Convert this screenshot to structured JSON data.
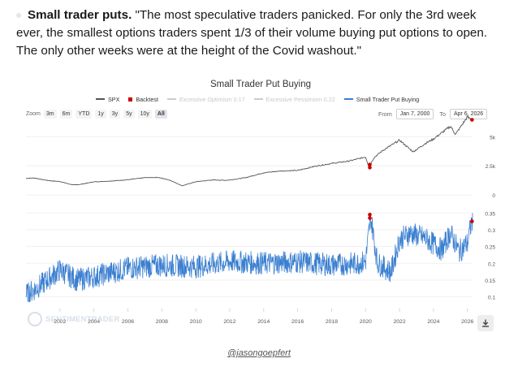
{
  "post": {
    "lead": "Small trader puts.",
    "body": " \"The most speculative traders panicked. For only the 3rd week ever, the smallest options traders spent 1/3 of their volume buying put options to open. The only other weeks were at the height of the Covid washout.\""
  },
  "chart": {
    "title": "Small Trader Put Buying",
    "zoom_label": "Zoom",
    "zoom_buttons": [
      "3m",
      "6m",
      "YTD",
      "1y",
      "3y",
      "5y",
      "10y",
      "All"
    ],
    "from_label": "From",
    "from_date": "Jan 7, 2000",
    "to_label": "To",
    "to_date": "Apr 6, 2026",
    "watermark": "SENTIMENTRADER",
    "legend": [
      {
        "label": "SPX",
        "color": "#555555",
        "faded": false,
        "kind": "line"
      },
      {
        "label": "Backtest",
        "color": "#cc0000",
        "faded": false,
        "kind": "square"
      },
      {
        "label": "Excessive Optimism 0.17",
        "color": "#cccccc",
        "faded": true,
        "kind": "line"
      },
      {
        "label": "Excessive Pessimism 0.22",
        "color": "#cccccc",
        "faded": true,
        "kind": "line"
      },
      {
        "label": "Small Trader Put Buying",
        "color": "#3a7fd0",
        "faded": false,
        "kind": "line"
      }
    ]
  },
  "chart_data": {
    "type": "line",
    "title": "Small Trader Put Buying",
    "x_range": [
      2000.0,
      2026.3
    ],
    "x_ticks": [
      "2002",
      "2004",
      "2006",
      "2008",
      "2010",
      "2012",
      "2014",
      "2016",
      "2018",
      "2020",
      "2022",
      "2024",
      "2026"
    ],
    "spx_ticks": [
      "5k",
      "2.5k",
      "0"
    ],
    "spx_range": [
      0,
      6000
    ],
    "indicator_ticks": [
      "0.35",
      "0.3",
      "0.25",
      "0.2",
      "0.15",
      "0.1"
    ],
    "indicator_range": [
      0.07,
      0.37
    ],
    "series": [
      {
        "name": "SPX",
        "color": "#555555",
        "x": [
          2000.0,
          2000.5,
          2001.0,
          2001.5,
          2002.0,
          2002.5,
          2002.8,
          2003.2,
          2004.0,
          2005.0,
          2006.0,
          2007.0,
          2007.8,
          2008.5,
          2009.2,
          2010.0,
          2011.0,
          2011.8,
          2012.5,
          2013.0,
          2014.0,
          2015.0,
          2016.0,
          2017.0,
          2018.0,
          2019.0,
          2020.0,
          2020.2,
          2020.5,
          2021.0,
          2022.0,
          2022.8,
          2023.5,
          2024.0,
          2025.0,
          2025.3,
          2026.0,
          2026.27
        ],
        "values": [
          1420,
          1450,
          1300,
          1200,
          1150,
          950,
          850,
          900,
          1120,
          1190,
          1300,
          1480,
          1500,
          1250,
          780,
          1130,
          1280,
          1250,
          1380,
          1500,
          1900,
          2050,
          2100,
          2450,
          2700,
          2900,
          3250,
          2400,
          3200,
          3800,
          4700,
          3700,
          4400,
          4800,
          5900,
          5200,
          6700,
          6450
        ]
      },
      {
        "name": "Small Trader Put Buying",
        "color": "#3a7fd0",
        "anchors_x": [
          2000.0,
          2001.0,
          2002.0,
          2003.0,
          2004.0,
          2006.0,
          2008.0,
          2010.0,
          2012.0,
          2014.0,
          2016.0,
          2018.0,
          2019.5,
          2020.0,
          2020.3,
          2020.7,
          2021.5,
          2022.0,
          2022.6,
          2023.5,
          2024.5,
          2025.0,
          2025.5,
          2026.0,
          2026.25
        ],
        "anchors_values": [
          0.105,
          0.14,
          0.18,
          0.15,
          0.16,
          0.185,
          0.195,
          0.19,
          0.205,
          0.2,
          0.205,
          0.195,
          0.2,
          0.205,
          0.34,
          0.2,
          0.175,
          0.27,
          0.29,
          0.275,
          0.24,
          0.29,
          0.235,
          0.26,
          0.325
        ]
      }
    ],
    "backtest_points": [
      {
        "series": "SPX",
        "x": 2020.25,
        "y": 2600
      },
      {
        "series": "SPX",
        "x": 2020.25,
        "y": 2350
      },
      {
        "series": "SPX",
        "x": 2026.27,
        "y": 6450
      },
      {
        "series": "Small Trader Put Buying",
        "x": 2020.25,
        "y": 0.345
      },
      {
        "series": "Small Trader Put Buying",
        "x": 2020.25,
        "y": 0.335
      },
      {
        "series": "Small Trader Put Buying",
        "x": 2026.27,
        "y": 0.325
      }
    ]
  },
  "attribution": "@jasongoepfert"
}
